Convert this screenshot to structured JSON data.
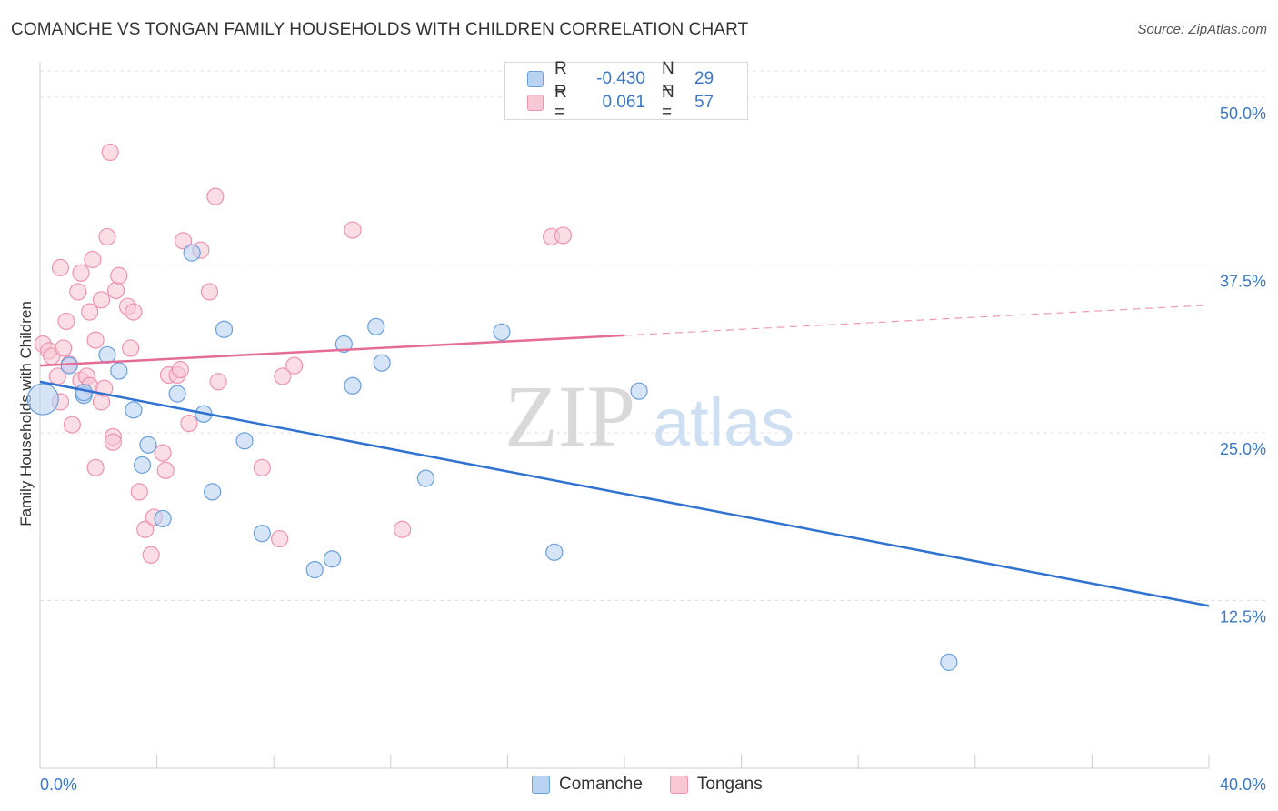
{
  "header": {
    "title": "COMANCHE VS TONGAN FAMILY HOUSEHOLDS WITH CHILDREN CORRELATION CHART",
    "source": "Source: ZipAtlas.com"
  },
  "watermark": {
    "zip": "ZIP",
    "atlas": "atlas"
  },
  "legend": {
    "series": [
      {
        "name": "Comanche",
        "r_label": "R =",
        "r_value": "-0.430",
        "n_label": "N =",
        "n_value": "29"
      },
      {
        "name": "Tongans",
        "r_label": "R =",
        "r_value": "0.061",
        "n_label": "N =",
        "n_value": "57"
      }
    ]
  },
  "colors": {
    "comanche_fill": "#b9d2f2",
    "comanche_stroke": "#6a9fdc",
    "comanche_line": "#2f72d0",
    "tongan_fill": "#f8c6d5",
    "tongan_stroke": "#ec93b0",
    "tongan_line": "#e46c97",
    "grid": "#e3e3e3",
    "tick_text": "#3b78c4"
  },
  "chart_data": {
    "type": "scatter",
    "title": "COMANCHE VS TONGAN FAMILY HOUSEHOLDS WITH CHILDREN CORRELATION CHART",
    "xlabel": "",
    "ylabel": "Family Households with Children",
    "xlim": [
      0,
      40
    ],
    "ylim": [
      0,
      52.5
    ],
    "x_tick_labels": [
      "0.0%",
      "40.0%"
    ],
    "y_ticks": [
      12.5,
      25.0,
      37.5,
      50.0
    ],
    "y_tick_labels": [
      "12.5%",
      "25.0%",
      "37.5%",
      "50.0%"
    ],
    "grid": true,
    "legend_position": "top-center",
    "series": [
      {
        "name": "Comanche",
        "trend": {
          "x": [
            0,
            40
          ],
          "y": [
            28.8,
            12.1
          ],
          "dashed_after": null
        },
        "points": [
          {
            "x": 0.1,
            "y": 27.5,
            "size": "large"
          },
          {
            "x": 1.0,
            "y": 30.0
          },
          {
            "x": 1.5,
            "y": 27.8
          },
          {
            "x": 1.5,
            "y": 28.0
          },
          {
            "x": 2.3,
            "y": 30.8
          },
          {
            "x": 2.7,
            "y": 29.6
          },
          {
            "x": 3.2,
            "y": 26.7
          },
          {
            "x": 3.5,
            "y": 22.6
          },
          {
            "x": 3.7,
            "y": 24.1
          },
          {
            "x": 4.2,
            "y": 18.6
          },
          {
            "x": 4.7,
            "y": 27.9
          },
          {
            "x": 5.2,
            "y": 38.4
          },
          {
            "x": 5.6,
            "y": 26.4
          },
          {
            "x": 5.9,
            "y": 20.6
          },
          {
            "x": 6.3,
            "y": 32.7
          },
          {
            "x": 7.0,
            "y": 24.4
          },
          {
            "x": 7.6,
            "y": 17.5
          },
          {
            "x": 9.4,
            "y": 14.8
          },
          {
            "x": 10.0,
            "y": 15.6
          },
          {
            "x": 10.4,
            "y": 31.6
          },
          {
            "x": 10.7,
            "y": 28.5
          },
          {
            "x": 11.5,
            "y": 32.9
          },
          {
            "x": 11.7,
            "y": 30.2
          },
          {
            "x": 13.2,
            "y": 21.6
          },
          {
            "x": 15.8,
            "y": 32.5
          },
          {
            "x": 17.6,
            "y": 16.1
          },
          {
            "x": 20.5,
            "y": 28.1
          },
          {
            "x": 31.1,
            "y": 7.9
          }
        ]
      },
      {
        "name": "Tongans",
        "trend": {
          "x": [
            0,
            40
          ],
          "y": [
            30.0,
            34.5
          ],
          "dashed_after": 20.0
        },
        "points": [
          {
            "x": 0.1,
            "y": 31.6
          },
          {
            "x": 0.3,
            "y": 31.1
          },
          {
            "x": 0.4,
            "y": 30.7
          },
          {
            "x": 0.6,
            "y": 29.2
          },
          {
            "x": 0.7,
            "y": 37.3
          },
          {
            "x": 0.7,
            "y": 27.3
          },
          {
            "x": 0.8,
            "y": 31.3
          },
          {
            "x": 0.9,
            "y": 33.3
          },
          {
            "x": 1.0,
            "y": 30.1
          },
          {
            "x": 1.1,
            "y": 25.6
          },
          {
            "x": 1.3,
            "y": 35.5
          },
          {
            "x": 1.4,
            "y": 28.9
          },
          {
            "x": 1.4,
            "y": 36.9
          },
          {
            "x": 1.6,
            "y": 29.2
          },
          {
            "x": 1.7,
            "y": 28.5
          },
          {
            "x": 1.7,
            "y": 34.0
          },
          {
            "x": 1.8,
            "y": 37.9
          },
          {
            "x": 1.9,
            "y": 31.9
          },
          {
            "x": 1.9,
            "y": 22.4
          },
          {
            "x": 2.1,
            "y": 27.3
          },
          {
            "x": 2.1,
            "y": 34.9
          },
          {
            "x": 2.2,
            "y": 28.3
          },
          {
            "x": 2.3,
            "y": 39.6
          },
          {
            "x": 2.4,
            "y": 45.9
          },
          {
            "x": 2.5,
            "y": 24.7
          },
          {
            "x": 2.5,
            "y": 24.3
          },
          {
            "x": 2.6,
            "y": 35.6
          },
          {
            "x": 2.7,
            "y": 36.7
          },
          {
            "x": 3.0,
            "y": 34.4
          },
          {
            "x": 3.1,
            "y": 31.3
          },
          {
            "x": 3.2,
            "y": 34.0
          },
          {
            "x": 3.4,
            "y": 20.6
          },
          {
            "x": 3.6,
            "y": 17.8
          },
          {
            "x": 3.8,
            "y": 15.9
          },
          {
            "x": 3.9,
            "y": 18.7
          },
          {
            "x": 4.2,
            "y": 23.5
          },
          {
            "x": 4.3,
            "y": 22.2
          },
          {
            "x": 4.4,
            "y": 29.3
          },
          {
            "x": 4.7,
            "y": 29.3
          },
          {
            "x": 4.8,
            "y": 29.7
          },
          {
            "x": 4.9,
            "y": 39.3
          },
          {
            "x": 5.1,
            "y": 25.7
          },
          {
            "x": 5.5,
            "y": 38.6
          },
          {
            "x": 5.8,
            "y": 35.5
          },
          {
            "x": 6.0,
            "y": 42.6
          },
          {
            "x": 6.1,
            "y": 28.8
          },
          {
            "x": 7.6,
            "y": 22.4
          },
          {
            "x": 8.2,
            "y": 17.1
          },
          {
            "x": 8.3,
            "y": 29.2
          },
          {
            "x": 8.7,
            "y": 30.0
          },
          {
            "x": 10.7,
            "y": 40.1
          },
          {
            "x": 12.4,
            "y": 17.8
          },
          {
            "x": 17.5,
            "y": 39.6
          },
          {
            "x": 17.9,
            "y": 39.7
          }
        ]
      }
    ]
  }
}
